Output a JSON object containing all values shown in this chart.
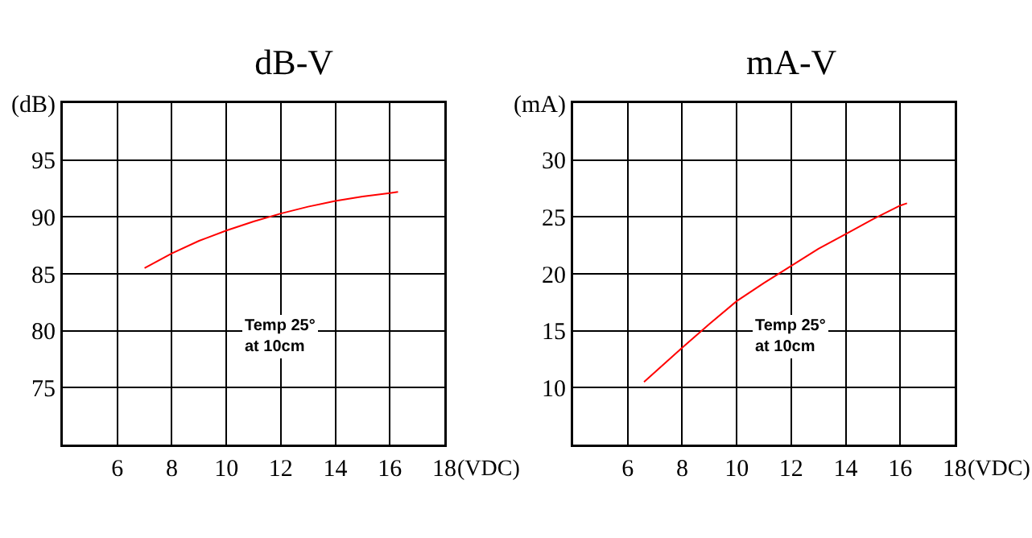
{
  "chart_data": [
    {
      "type": "line",
      "title": "dB-V",
      "x": [
        7,
        8,
        9,
        10,
        11,
        12,
        13,
        14,
        15,
        16,
        16.3
      ],
      "series": [
        {
          "color": "#ff0000",
          "values": [
            85.5,
            86.8,
            87.9,
            88.8,
            89.6,
            90.3,
            90.9,
            91.4,
            91.8,
            92.1,
            92.2
          ]
        }
      ],
      "xlabel": "(VDC)",
      "xlim": [
        4,
        18
      ],
      "xticks": [
        6,
        8,
        10,
        12,
        14,
        16,
        18
      ],
      "ylim": [
        70,
        100
      ],
      "yticks": [
        75,
        80,
        85,
        90,
        95,
        {
          "value": 100,
          "label": "(dB)"
        }
      ],
      "grid": true,
      "marker": "none",
      "line_style": "solid",
      "annotations": [
        "Temp 25°\nat 10cm"
      ]
    },
    {
      "type": "line",
      "title": "mA-V",
      "x": [
        6.6,
        8,
        9,
        10,
        11,
        12,
        13,
        14,
        15,
        16,
        16.25
      ],
      "series": [
        {
          "color": "#ff0000",
          "values": [
            10.5,
            13.5,
            15.6,
            17.6,
            19.2,
            20.7,
            22.2,
            23.5,
            24.8,
            26.0,
            26.2
          ]
        }
      ],
      "xlabel": "(VDC)",
      "xlim": [
        4,
        18
      ],
      "xticks": [
        6,
        8,
        10,
        12,
        14,
        16,
        18
      ],
      "ylim": [
        5,
        35
      ],
      "yticks": [
        10,
        15,
        20,
        25,
        30,
        {
          "value": 35,
          "label": "(mA)"
        }
      ],
      "grid": true,
      "marker": "none",
      "line_style": "solid",
      "annotations": [
        "Temp 25°\nat 10cm"
      ]
    }
  ]
}
